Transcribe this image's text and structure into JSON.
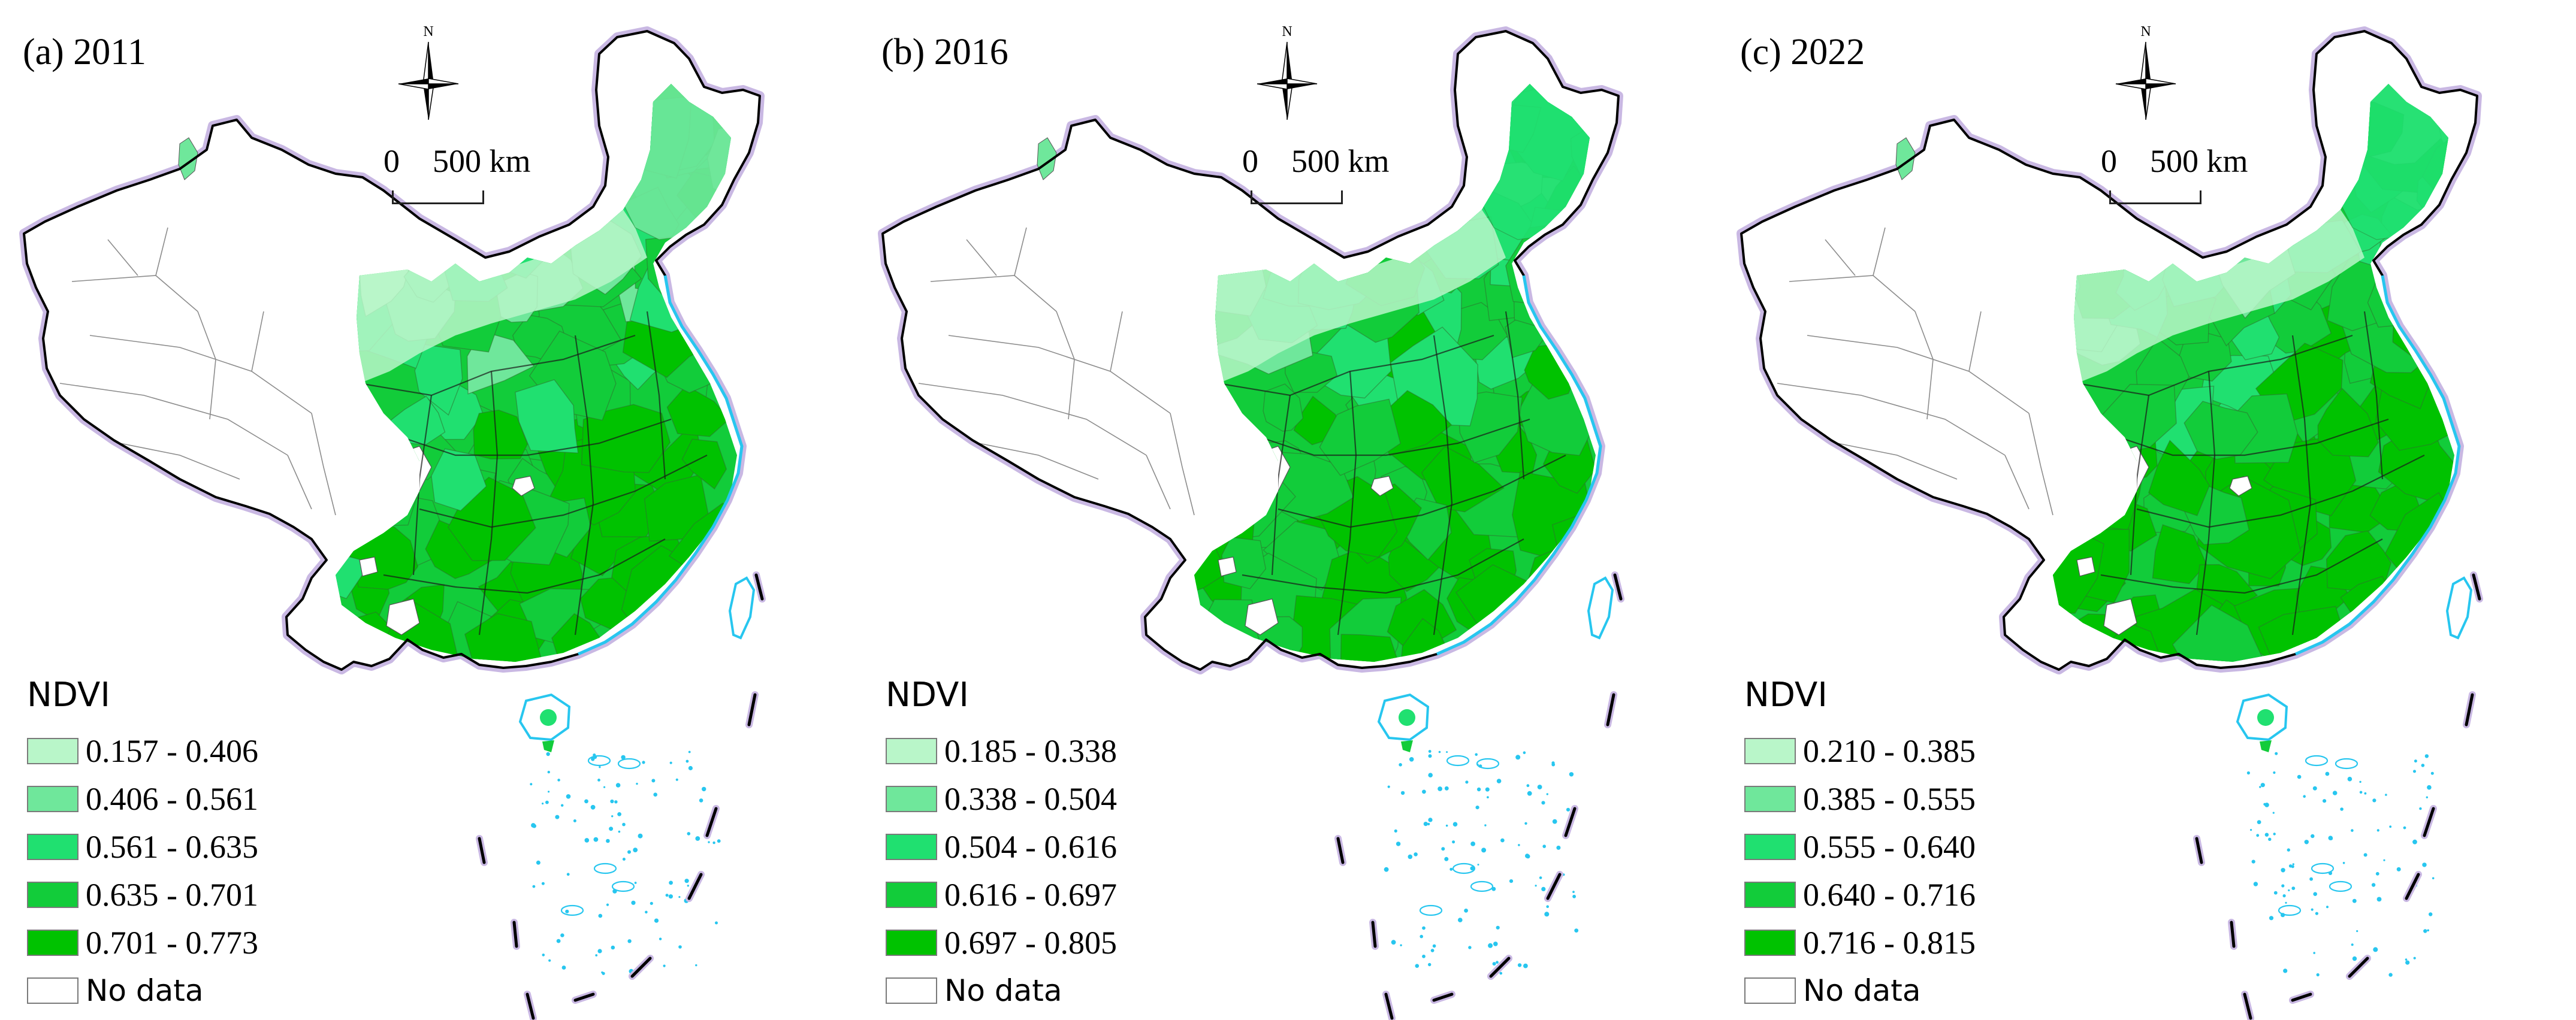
{
  "map": {
    "north_label": "N",
    "scale": {
      "zero": "0",
      "distance": "500 km"
    },
    "legend_title": "NDVI",
    "no_data_label": "No data",
    "colors": {
      "class1": "#b9f6c9",
      "class2": "#6fe79b",
      "class3": "#20e070",
      "class4": "#12cc3a",
      "class5": "#00c200",
      "no_data": "#ffffff",
      "outline": "#000000",
      "halo": "#c9b8e3",
      "internal_boundary": "#8c8c8c",
      "water": "#27c6ef"
    },
    "panels": [
      {
        "title": "(a) 2011",
        "classes": [
          {
            "label": "0.157 - 0.406"
          },
          {
            "label": "0.406 - 0.561"
          },
          {
            "label": "0.561 - 0.635"
          },
          {
            "label": "0.635 - 0.701"
          },
          {
            "label": "0.701 - 0.773"
          }
        ]
      },
      {
        "title": "(b) 2016",
        "classes": [
          {
            "label": "0.185 - 0.338"
          },
          {
            "label": "0.338 - 0.504"
          },
          {
            "label": "0.504 - 0.616"
          },
          {
            "label": "0.616 - 0.697"
          },
          {
            "label": "0.697 - 0.805"
          }
        ]
      },
      {
        "title": "(c) 2022",
        "classes": [
          {
            "label": "0.210 - 0.385"
          },
          {
            "label": "0.385 - 0.555"
          },
          {
            "label": "0.555 - 0.640"
          },
          {
            "label": "0.640 - 0.716"
          },
          {
            "label": "0.716 - 0.815"
          }
        ]
      }
    ]
  }
}
